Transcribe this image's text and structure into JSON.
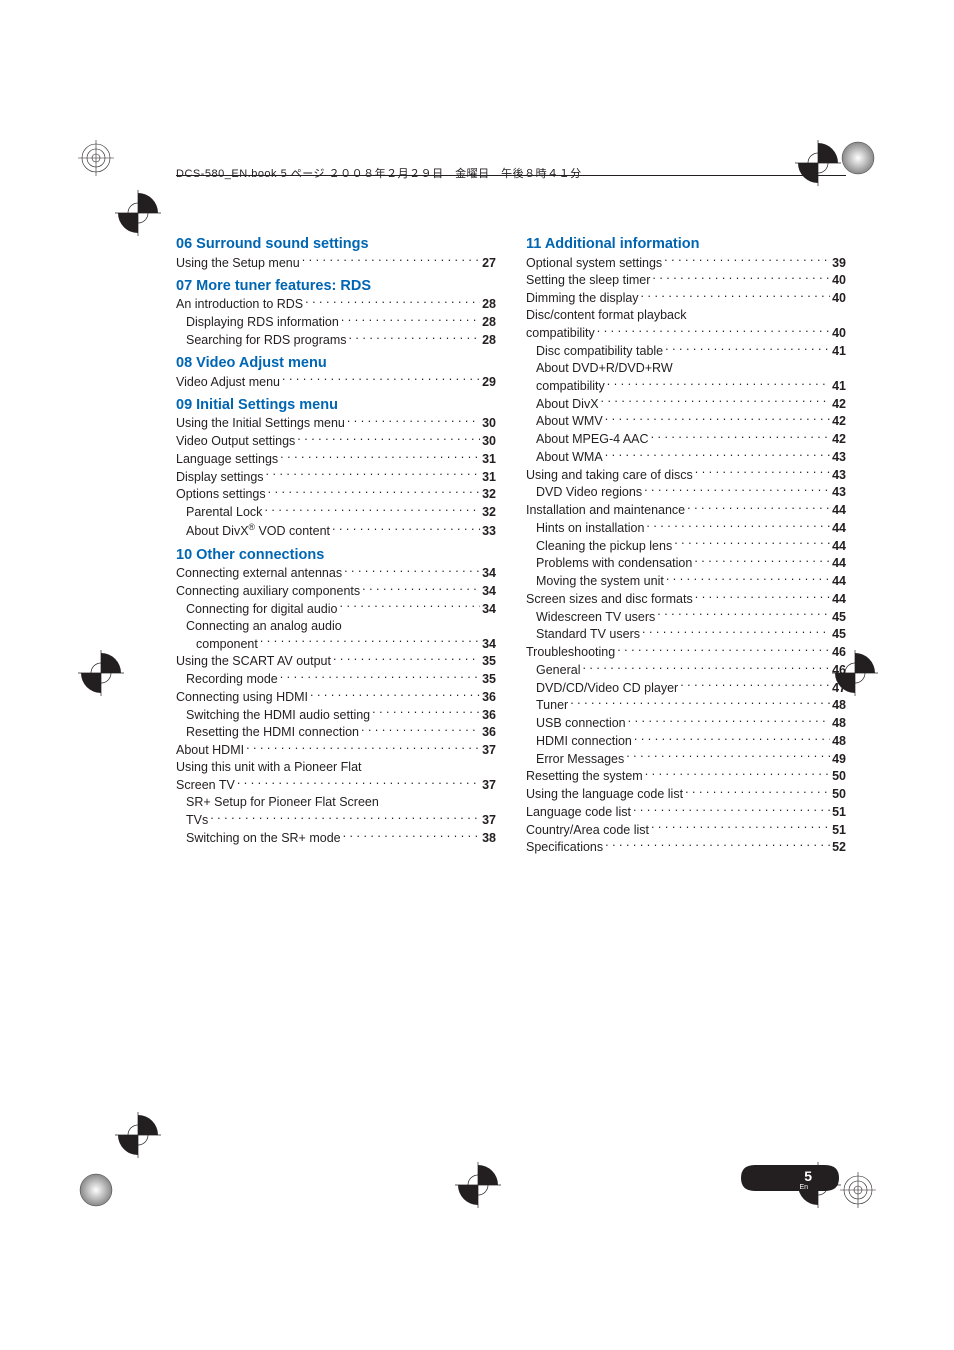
{
  "header": {
    "text": "DCS-580_EN.book  5 ページ  ２００８年２月２９日　金曜日　午後８時４１分"
  },
  "page_number": "5",
  "page_lang": "En",
  "colors": {
    "heading_blue": "#0066b3",
    "text": "#231f20",
    "pill": "#231f20",
    "bg": "#ffffff"
  },
  "left_sections": [
    {
      "title": "06 Surround sound settings",
      "items": [
        {
          "label": "Using the Setup menu",
          "page": "27",
          "indent": 0
        }
      ]
    },
    {
      "title": "07 More tuner features: RDS",
      "items": [
        {
          "label": "An introduction to RDS",
          "page": "28",
          "indent": 0
        },
        {
          "label": "Displaying RDS information",
          "page": "28",
          "indent": 1
        },
        {
          "label": "Searching for RDS programs",
          "page": "28",
          "indent": 1
        }
      ]
    },
    {
      "title": "08 Video Adjust menu",
      "items": [
        {
          "label": "Video Adjust menu",
          "page": "29",
          "indent": 0
        }
      ]
    },
    {
      "title": "09 Initial Settings menu",
      "items": [
        {
          "label": "Using the Initial Settings menu",
          "page": "30",
          "indent": 0
        },
        {
          "label": "Video Output settings",
          "page": "30",
          "indent": 0
        },
        {
          "label": "Language settings",
          "page": "31",
          "indent": 0
        },
        {
          "label": "Display settings",
          "page": "31",
          "indent": 0
        },
        {
          "label": "Options settings",
          "page": "32",
          "indent": 0
        },
        {
          "label": "Parental Lock",
          "page": "32",
          "indent": 1
        },
        {
          "label_html": "About DivX<sup>®</sup> VOD content",
          "page": "33",
          "indent": 1
        }
      ]
    },
    {
      "title": "10 Other connections",
      "items": [
        {
          "label": "Connecting external antennas",
          "page": "34",
          "indent": 0
        },
        {
          "label": "Connecting auxiliary components",
          "page": "34",
          "indent": 0
        },
        {
          "label": "Connecting for digital audio",
          "page": "34",
          "indent": 1
        },
        {
          "wrap": "Connecting an analog audio",
          "indent": 1
        },
        {
          "label": "component",
          "page": "34",
          "indent": 2
        },
        {
          "label": "Using the SCART AV output",
          "page": "35",
          "indent": 0
        },
        {
          "label": "Recording mode",
          "page": "35",
          "indent": 1
        },
        {
          "label": "Connecting using HDMI",
          "page": "36",
          "indent": 0
        },
        {
          "label": "Switching the HDMI audio setting",
          "page": "36",
          "indent": 1
        },
        {
          "label": "Resetting the HDMI connection",
          "page": "36",
          "indent": 1
        },
        {
          "label": "About HDMI",
          "page": "37",
          "indent": 0
        },
        {
          "wrap": "Using this unit with a Pioneer Flat",
          "indent": 0
        },
        {
          "label": "Screen TV",
          "page": "37",
          "indent": 0
        },
        {
          "wrap": "SR+ Setup for Pioneer Flat Screen",
          "indent": 1
        },
        {
          "label": "TVs",
          "page": "37",
          "indent": 1
        },
        {
          "label": "Switching on the SR+ mode",
          "page": "38",
          "indent": 1
        }
      ]
    }
  ],
  "right_sections": [
    {
      "title": "11 Additional information",
      "items": [
        {
          "label": "Optional system settings",
          "page": "39",
          "indent": 0
        },
        {
          "label": "Setting the sleep timer",
          "page": "40",
          "indent": 0
        },
        {
          "label": "Dimming the display",
          "page": "40",
          "indent": 0
        },
        {
          "wrap": "Disc/content format playback",
          "indent": 0
        },
        {
          "label": "compatibility",
          "page": "40",
          "indent": 0
        },
        {
          "label": "Disc compatibility table",
          "page": "41",
          "indent": 1
        },
        {
          "wrap": "About DVD+R/DVD+RW",
          "indent": 1
        },
        {
          "label": "compatibility",
          "page": "41",
          "indent": 1
        },
        {
          "label": "About DivX",
          "page": "42",
          "indent": 1
        },
        {
          "label": "About WMV",
          "page": "42",
          "indent": 1
        },
        {
          "label": "About MPEG-4 AAC",
          "page": "42",
          "indent": 1
        },
        {
          "label": "About WMA",
          "page": "43",
          "indent": 1
        },
        {
          "label": "Using and taking care of discs",
          "page": "43",
          "indent": 0
        },
        {
          "label": "DVD Video regions",
          "page": "43",
          "indent": 1
        },
        {
          "label": "Installation and maintenance",
          "page": "44",
          "indent": 0
        },
        {
          "label": "Hints on installation",
          "page": "44",
          "indent": 1
        },
        {
          "label": "Cleaning the pickup lens",
          "page": "44",
          "indent": 1
        },
        {
          "label": "Problems with condensation",
          "page": "44",
          "indent": 1
        },
        {
          "label": "Moving the system unit",
          "page": "44",
          "indent": 1
        },
        {
          "label": "Screen sizes and disc formats",
          "page": "44",
          "indent": 0
        },
        {
          "label": "Widescreen TV users",
          "page": "45",
          "indent": 1
        },
        {
          "label": "Standard TV users",
          "page": "45",
          "indent": 1
        },
        {
          "label": "Troubleshooting",
          "page": "46",
          "indent": 0
        },
        {
          "label": "General",
          "page": "46",
          "indent": 1
        },
        {
          "label": "DVD/CD/Video CD player",
          "page": "47",
          "indent": 1
        },
        {
          "label": "Tuner",
          "page": "48",
          "indent": 1
        },
        {
          "label": "USB connection",
          "page": "48",
          "indent": 1
        },
        {
          "label": "HDMI connection",
          "page": "48",
          "indent": 1
        },
        {
          "label": "Error Messages",
          "page": "49",
          "indent": 1
        },
        {
          "label": "Resetting the system",
          "page": "50",
          "indent": 0
        },
        {
          "label": "Using the language code list",
          "page": "50",
          "indent": 0
        },
        {
          "label": "Language code list",
          "page": "51",
          "indent": 0
        },
        {
          "label": "Country/Area code list",
          "page": "51",
          "indent": 0
        },
        {
          "label": "Specifications",
          "page": "52",
          "indent": 0
        }
      ]
    }
  ]
}
